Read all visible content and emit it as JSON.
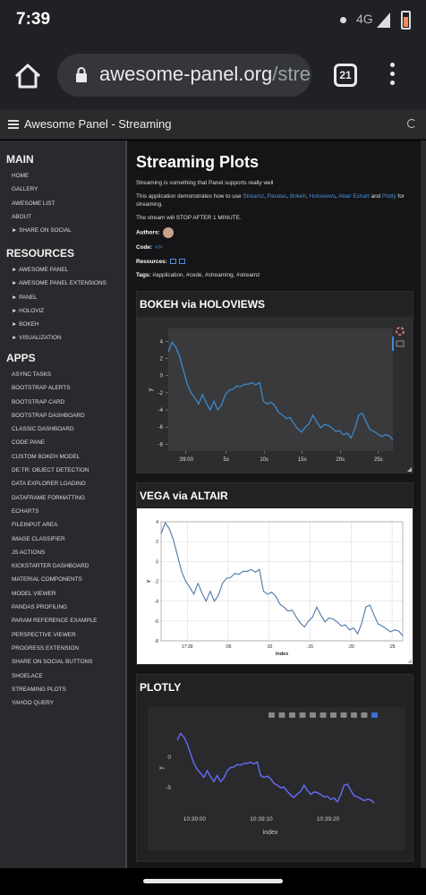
{
  "status": {
    "time": "7:39",
    "network": "4G"
  },
  "browser": {
    "url_host": "awesome-panel.org",
    "url_path": "/stre",
    "tab_count": "21"
  },
  "app": {
    "title": "Awesome Panel - Streaming"
  },
  "sidebar": {
    "sections": [
      {
        "title": "MAIN",
        "items": [
          "HOME",
          "GALLERY",
          "AWESOME LIST",
          "ABOUT",
          "► SHARE ON SOCIAL"
        ]
      },
      {
        "title": "RESOURCES",
        "items": [
          "► AWESOME PANEL",
          "► AWESOME PANEL EXTENSIONS",
          "► PANEL",
          "► HOLOVIZ",
          "► BOKEH",
          "► VISUALIZATION"
        ]
      },
      {
        "title": "APPS",
        "items": [
          "ASYNC TASKS",
          "BOOTSTRAP ALERTS",
          "BOOTSTRAP CARD",
          "BOOTSTRAP DASHBOARD",
          "CLASSIC DASHBOARD",
          "CODE PANE",
          "CUSTOM BOKEH MODEL",
          "DE:TR: OBJECT DETECTION",
          "DATA EXPLORER LOADING",
          "DATAFRAME FORMATTING",
          "ECHARTS",
          "FILEINPUT AREA",
          "IMAGE CLASSIFIER",
          "JS ACTIONS",
          "KICKSTARTER DASHBOARD",
          "MATERIAL COMPONENTS",
          "MODEL VIEWER",
          "PANDAS PROFILING",
          "PARAM REFERENCE EXAMPLE",
          "PERSPECTIVE VIEWER",
          "PROGRESS EXTENSION",
          "SHARE ON SOCIAL BUTTONS",
          "SHOELACE",
          "STREAMING PLOTS",
          "YAHOO QUERY"
        ]
      }
    ]
  },
  "page": {
    "title": "Streaming Plots",
    "subtitle": "Streaming is something that Panel supports really well",
    "demo_prefix": "This application demonstrates how to use ",
    "demo_links": [
      "Streamz",
      "Pandas",
      "Bokeh",
      "Holoviews",
      "Altair Echart",
      "Plotly"
    ],
    "demo_suffix": " for streaming.",
    "stop_note": "The stream will STOP AFTER 1 MINUTE.",
    "authors_label": "Authors:",
    "code_label": "Code:",
    "code_icon": "</>",
    "resources_label": "Resources:",
    "tags_label": "Tags:",
    "tags": "#application, #code, #streaming, #streamz"
  },
  "cards": {
    "bokeh": {
      "title": "BOKEH via HOLOVIEWS"
    },
    "altair": {
      "title": "VEGA via ALTAIR"
    },
    "plotly": {
      "title": "PLOTLY"
    }
  },
  "colors": {
    "bokeh_line": "#3a8fd6",
    "altair_line": "#4c78a8",
    "plotly_line": "#636efa",
    "link": "#4a90d9"
  },
  "chart_data": [
    {
      "type": "line",
      "title": "BOKEH via HOLOVIEWS",
      "xlabel": "",
      "ylabel": "y",
      "x_tick_labels": [
        ":39:00",
        "5s",
        "10s",
        "15s",
        "20s",
        "25s"
      ],
      "y_ticks": [
        4,
        2,
        0,
        -2,
        -4,
        -6,
        -8
      ],
      "ylim": [
        -8.8,
        5.5
      ],
      "x": [
        0,
        0.5,
        1,
        1.5,
        2,
        2.5,
        3,
        3.5,
        4,
        4.5,
        5,
        5.5,
        6,
        6.5,
        7,
        7.5,
        8,
        8.5,
        9,
        9.5,
        10,
        10.5,
        11,
        11.5,
        12,
        12.5,
        13,
        13.5,
        14,
        14.5,
        15,
        15.5,
        16,
        16.5,
        17,
        17.5,
        18,
        18.5,
        19,
        19.5,
        20,
        20.5,
        21,
        21.5,
        22,
        22.5,
        23,
        23.5,
        24,
        24.5,
        25,
        25.5,
        26,
        26.5,
        27,
        27.5,
        28,
        28.5,
        29,
        29.5
      ],
      "y": [
        2.8,
        3.9,
        3.3,
        2.2,
        0.6,
        -1.0,
        -2.0,
        -2.6,
        -3.3,
        -2.2,
        -3.2,
        -4.0,
        -3.0,
        -4.0,
        -3.4,
        -2.2,
        -1.7,
        -1.6,
        -1.2,
        -1.3,
        -1.0,
        -1.0,
        -0.8,
        -1.1,
        -0.8,
        -3.0,
        -3.3,
        -3.1,
        -3.5,
        -4.3,
        -4.6,
        -5.0,
        -4.9,
        -5.6,
        -6.2,
        -6.6,
        -6.0,
        -5.6,
        -4.6,
        -5.4,
        -6.1,
        -5.7,
        -5.8,
        -6.1,
        -6.5,
        -6.4,
        -6.9,
        -6.7,
        -7.3,
        -6.2,
        -4.6,
        -4.4,
        -5.4,
        -6.3,
        -6.5,
        -6.8,
        -7.1,
        -6.9,
        -7.0,
        -7.5
      ]
    },
    {
      "type": "line",
      "title": "VEGA via ALTAIR",
      "xlabel": "index",
      "ylabel": "y",
      "x_tick_labels": [
        "17:39",
        ":05",
        ":10",
        ":15",
        ":20",
        ":25"
      ],
      "y_tick_labels": [
        "4",
        "2",
        "0",
        "-2",
        "-4",
        "-6",
        "-8"
      ],
      "ylim": [
        -8,
        4
      ],
      "x": [
        0,
        0.5,
        1,
        1.5,
        2,
        2.5,
        3,
        3.5,
        4,
        4.5,
        5,
        5.5,
        6,
        6.5,
        7,
        7.5,
        8,
        8.5,
        9,
        9.5,
        10,
        10.5,
        11,
        11.5,
        12,
        12.5,
        13,
        13.5,
        14,
        14.5,
        15,
        15.5,
        16,
        16.5,
        17,
        17.5,
        18,
        18.5,
        19,
        19.5,
        20,
        20.5,
        21,
        21.5,
        22,
        22.5,
        23,
        23.5,
        24,
        24.5,
        25,
        25.5,
        26,
        26.5,
        27,
        27.5,
        28,
        28.5,
        29,
        29.5
      ],
      "y": [
        2.8,
        3.9,
        3.3,
        2.2,
        0.6,
        -1.0,
        -2.0,
        -2.6,
        -3.3,
        -2.2,
        -3.2,
        -4.0,
        -3.0,
        -4.0,
        -3.4,
        -2.2,
        -1.7,
        -1.6,
        -1.2,
        -1.3,
        -1.0,
        -1.0,
        -0.8,
        -1.1,
        -0.8,
        -3.0,
        -3.3,
        -3.1,
        -3.5,
        -4.3,
        -4.6,
        -5.0,
        -4.9,
        -5.6,
        -6.2,
        -6.6,
        -6.0,
        -5.6,
        -4.6,
        -5.4,
        -6.1,
        -5.7,
        -5.8,
        -6.1,
        -6.5,
        -6.4,
        -6.9,
        -6.7,
        -7.3,
        -6.2,
        -4.6,
        -4.4,
        -5.4,
        -6.3,
        -6.5,
        -6.8,
        -7.1,
        -6.9,
        -7.0,
        -7.5
      ]
    },
    {
      "type": "line",
      "title": "PLOTLY",
      "xlabel": "index",
      "ylabel": "y",
      "x_tick_labels": [
        "10:39:00",
        "10:39:10",
        "10:39:20"
      ],
      "y_tick_labels": [
        "0",
        "-5"
      ],
      "ylim": [
        -8.5,
        5
      ],
      "x": [
        0,
        0.5,
        1,
        1.5,
        2,
        2.5,
        3,
        3.5,
        4,
        4.5,
        5,
        5.5,
        6,
        6.5,
        7,
        7.5,
        8,
        8.5,
        9,
        9.5,
        10,
        10.5,
        11,
        11.5,
        12,
        12.5,
        13,
        13.5,
        14,
        14.5,
        15,
        15.5,
        16,
        16.5,
        17,
        17.5,
        18,
        18.5,
        19,
        19.5,
        20,
        20.5,
        21,
        21.5,
        22,
        22.5,
        23,
        23.5,
        24,
        24.5,
        25,
        25.5,
        26,
        26.5,
        27,
        27.5,
        28,
        28.5,
        29,
        29.5
      ],
      "y": [
        2.8,
        3.9,
        3.3,
        2.2,
        0.6,
        -1.0,
        -2.0,
        -2.6,
        -3.3,
        -2.2,
        -3.2,
        -4.0,
        -3.0,
        -4.0,
        -3.4,
        -2.2,
        -1.7,
        -1.6,
        -1.2,
        -1.3,
        -1.0,
        -1.0,
        -0.8,
        -1.1,
        -0.8,
        -3.0,
        -3.3,
        -3.1,
        -3.5,
        -4.3,
        -4.6,
        -5.0,
        -4.9,
        -5.6,
        -6.2,
        -6.6,
        -6.0,
        -5.6,
        -4.6,
        -5.4,
        -6.1,
        -5.7,
        -5.8,
        -6.1,
        -6.5,
        -6.4,
        -6.9,
        -6.7,
        -7.3,
        -6.2,
        -4.6,
        -4.4,
        -5.4,
        -6.3,
        -6.5,
        -6.8,
        -7.1,
        -6.9,
        -7.0,
        -7.5
      ]
    }
  ]
}
